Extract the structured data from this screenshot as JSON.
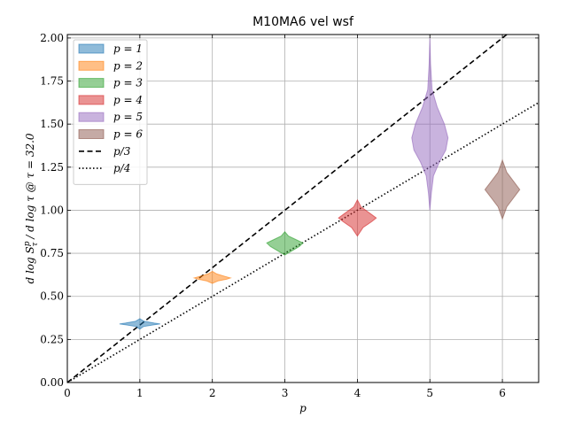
{
  "chart_data": {
    "type": "violin",
    "title": "M10MA6 vel wsf",
    "xlabel": "p",
    "ylabel": "d log S^p_τ / d log τ @ τ = 32.0",
    "xlim": [
      0,
      6.5
    ],
    "ylim": [
      0,
      2.02
    ],
    "xticks": [
      {
        "value": 0,
        "label": "0"
      },
      {
        "value": 1,
        "label": "1"
      },
      {
        "value": 2,
        "label": "2"
      },
      {
        "value": 3,
        "label": "3"
      },
      {
        "value": 4,
        "label": "4"
      },
      {
        "value": 5,
        "label": "5"
      },
      {
        "value": 6,
        "label": "6"
      }
    ],
    "yticks": [
      {
        "value": 0.0,
        "label": "0.00"
      },
      {
        "value": 0.25,
        "label": "0.25"
      },
      {
        "value": 0.5,
        "label": "0.50"
      },
      {
        "value": 0.75,
        "label": "0.75"
      },
      {
        "value": 1.0,
        "label": "1.00"
      },
      {
        "value": 1.25,
        "label": "1.25"
      },
      {
        "value": 1.5,
        "label": "1.50"
      },
      {
        "value": 1.75,
        "label": "1.75"
      },
      {
        "value": 2.0,
        "label": "2.00"
      }
    ],
    "grid": true,
    "legend_position": "top-left",
    "violins": [
      {
        "name": "p = 1",
        "x": 1,
        "color": "#1f77b4",
        "profile": [
          [
            0.31,
            0
          ],
          [
            0.325,
            0.05
          ],
          [
            0.335,
            0.2
          ],
          [
            0.34,
            0.28
          ],
          [
            0.345,
            0.2
          ],
          [
            0.355,
            0.06
          ],
          [
            0.37,
            0
          ]
        ]
      },
      {
        "name": "p = 2",
        "x": 2,
        "color": "#ff7f0e",
        "profile": [
          [
            0.575,
            0
          ],
          [
            0.59,
            0.08
          ],
          [
            0.6,
            0.2
          ],
          [
            0.607,
            0.25
          ],
          [
            0.615,
            0.18
          ],
          [
            0.63,
            0.06
          ],
          [
            0.645,
            0
          ]
        ]
      },
      {
        "name": "p = 3",
        "x": 3,
        "color": "#2ca02c",
        "profile": [
          [
            0.74,
            0
          ],
          [
            0.765,
            0.1
          ],
          [
            0.79,
            0.2
          ],
          [
            0.81,
            0.25
          ],
          [
            0.83,
            0.15
          ],
          [
            0.85,
            0.05
          ],
          [
            0.875,
            0
          ]
        ]
      },
      {
        "name": "p = 4",
        "x": 4,
        "color": "#d62728",
        "profile": [
          [
            0.85,
            0
          ],
          [
            0.9,
            0.08
          ],
          [
            0.935,
            0.2
          ],
          [
            0.955,
            0.26
          ],
          [
            0.98,
            0.18
          ],
          [
            1.02,
            0.05
          ],
          [
            1.06,
            0
          ]
        ]
      },
      {
        "name": "p = 5",
        "x": 5,
        "color": "#9467bd",
        "profile": [
          [
            1.0,
            0
          ],
          [
            1.1,
            0.02
          ],
          [
            1.2,
            0.05
          ],
          [
            1.28,
            0.13
          ],
          [
            1.35,
            0.22
          ],
          [
            1.42,
            0.25
          ],
          [
            1.5,
            0.2
          ],
          [
            1.6,
            0.1
          ],
          [
            1.7,
            0.03
          ],
          [
            1.85,
            0.01
          ],
          [
            2.0,
            0
          ]
        ]
      },
      {
        "name": "p = 6",
        "x": 6,
        "color": "#8c564b",
        "profile": [
          [
            0.95,
            0
          ],
          [
            1.02,
            0.06
          ],
          [
            1.07,
            0.15
          ],
          [
            1.12,
            0.24
          ],
          [
            1.17,
            0.15
          ],
          [
            1.22,
            0.06
          ],
          [
            1.29,
            0
          ]
        ]
      }
    ],
    "lines": [
      {
        "name": "p/3",
        "slope": 0.3333333,
        "style": "dashed",
        "color": "#000000"
      },
      {
        "name": "p/4",
        "slope": 0.25,
        "style": "dotted",
        "color": "#000000"
      }
    ],
    "legend": [
      "p = 1",
      "p = 2",
      "p = 3",
      "p = 4",
      "p = 5",
      "p = 6",
      "p/3",
      "p/4"
    ]
  }
}
